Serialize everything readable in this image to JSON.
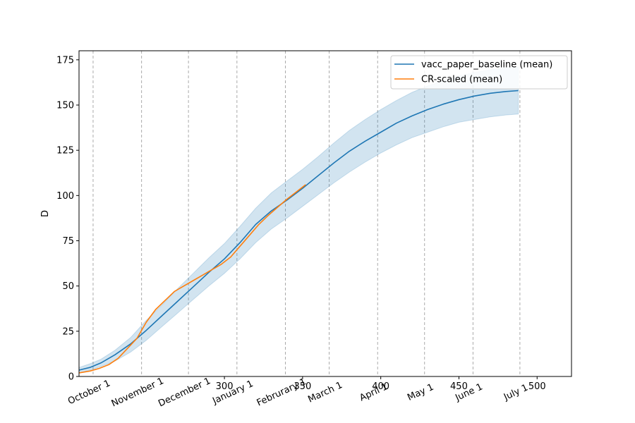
{
  "chart_data": {
    "type": "line",
    "xlabel": "",
    "ylabel": "D",
    "xlim": [
      207,
      522
    ],
    "ylim": [
      0,
      180
    ],
    "x_ticks": [
      300,
      350,
      400,
      450,
      500
    ],
    "y_ticks": [
      0,
      25,
      50,
      75,
      100,
      125,
      150,
      175
    ],
    "month_lines": [
      {
        "x": 216,
        "label": "October 1"
      },
      {
        "x": 247,
        "label": "November 1"
      },
      {
        "x": 277,
        "label": "December 1"
      },
      {
        "x": 308,
        "label": "January 1"
      },
      {
        "x": 339,
        "label": "Februrary 1"
      },
      {
        "x": 367,
        "label": "March 1"
      },
      {
        "x": 398,
        "label": "April 1"
      },
      {
        "x": 428,
        "label": "May 1"
      },
      {
        "x": 459,
        "label": "June 1"
      },
      {
        "x": 489,
        "label": "July 1"
      }
    ],
    "legend": {
      "position": "top-right"
    },
    "series": [
      {
        "name": "vacc_paper_baseline (mean)",
        "color": "#1f77b4",
        "band_color": "#1f77b4",
        "points": [
          [
            207,
            3.5
          ],
          [
            214,
            5
          ],
          [
            221,
            7.5
          ],
          [
            230,
            12
          ],
          [
            240,
            18
          ],
          [
            250,
            25.5
          ],
          [
            260,
            33.5
          ],
          [
            270,
            41.5
          ],
          [
            280,
            49.5
          ],
          [
            290,
            57.5
          ],
          [
            300,
            65
          ],
          [
            310,
            74
          ],
          [
            320,
            84
          ],
          [
            330,
            91.5
          ],
          [
            340,
            97.5
          ],
          [
            350,
            104
          ],
          [
            360,
            111
          ],
          [
            370,
            118
          ],
          [
            380,
            124.5
          ],
          [
            390,
            130
          ],
          [
            400,
            135
          ],
          [
            410,
            140
          ],
          [
            420,
            144
          ],
          [
            430,
            147.5
          ],
          [
            440,
            150.5
          ],
          [
            450,
            153
          ],
          [
            460,
            155
          ],
          [
            470,
            156.5
          ],
          [
            480,
            157.5
          ],
          [
            488,
            158
          ]
        ],
        "lower": [
          [
            207,
            2
          ],
          [
            214,
            3.5
          ],
          [
            221,
            5.5
          ],
          [
            230,
            8.5
          ],
          [
            240,
            13.5
          ],
          [
            250,
            20
          ],
          [
            260,
            27.5
          ],
          [
            270,
            35
          ],
          [
            280,
            42.5
          ],
          [
            290,
            50
          ],
          [
            300,
            57
          ],
          [
            310,
            65
          ],
          [
            320,
            74
          ],
          [
            330,
            81.5
          ],
          [
            340,
            87.5
          ],
          [
            350,
            94
          ],
          [
            360,
            100.5
          ],
          [
            370,
            107
          ],
          [
            380,
            113
          ],
          [
            390,
            118.5
          ],
          [
            400,
            123.5
          ],
          [
            410,
            128
          ],
          [
            420,
            132
          ],
          [
            430,
            135
          ],
          [
            440,
            138
          ],
          [
            450,
            140.5
          ],
          [
            460,
            142
          ],
          [
            470,
            143.5
          ],
          [
            480,
            144.5
          ],
          [
            488,
            145
          ]
        ],
        "upper": [
          [
            207,
            5
          ],
          [
            214,
            7
          ],
          [
            221,
            9.5
          ],
          [
            230,
            14.5
          ],
          [
            240,
            21.5
          ],
          [
            250,
            31
          ],
          [
            260,
            39.5
          ],
          [
            270,
            48.5
          ],
          [
            280,
            57
          ],
          [
            290,
            65.5
          ],
          [
            300,
            73.5
          ],
          [
            310,
            83
          ],
          [
            320,
            93
          ],
          [
            330,
            101.5
          ],
          [
            340,
            108
          ],
          [
            350,
            114.5
          ],
          [
            360,
            121.5
          ],
          [
            370,
            129
          ],
          [
            380,
            136
          ],
          [
            390,
            142
          ],
          [
            400,
            147.5
          ],
          [
            410,
            152.5
          ],
          [
            420,
            157
          ],
          [
            430,
            160.5
          ],
          [
            440,
            163.5
          ],
          [
            450,
            166
          ],
          [
            460,
            168
          ],
          [
            470,
            169.5
          ],
          [
            480,
            170.5
          ],
          [
            488,
            171
          ]
        ]
      },
      {
        "name": "CR-scaled (mean)",
        "color": "#ff7f0e",
        "points": [
          [
            207,
            2
          ],
          [
            214,
            3
          ],
          [
            220,
            4.5
          ],
          [
            226,
            6.5
          ],
          [
            232,
            10
          ],
          [
            238,
            15.5
          ],
          [
            244,
            21
          ],
          [
            250,
            30
          ],
          [
            256,
            37
          ],
          [
            262,
            42
          ],
          [
            268,
            47
          ],
          [
            274,
            50
          ],
          [
            280,
            53
          ],
          [
            286,
            56
          ],
          [
            292,
            59
          ],
          [
            298,
            62
          ],
          [
            304,
            66
          ],
          [
            310,
            72
          ],
          [
            316,
            78
          ],
          [
            322,
            84
          ],
          [
            328,
            89
          ],
          [
            334,
            93.5
          ],
          [
            340,
            98
          ],
          [
            346,
            102
          ],
          [
            352,
            106
          ]
        ]
      }
    ]
  }
}
